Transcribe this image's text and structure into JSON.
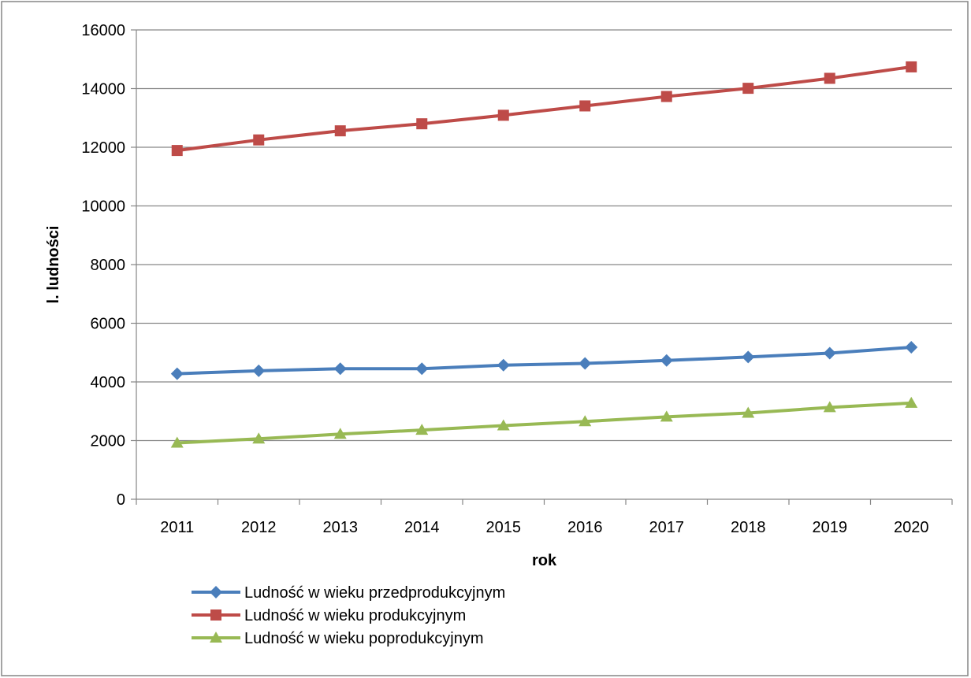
{
  "chart_data": {
    "type": "line",
    "title": "",
    "xlabel": "rok",
    "ylabel": "l. ludności",
    "categories": [
      "2011",
      "2012",
      "2013",
      "2014",
      "2015",
      "2016",
      "2017",
      "2018",
      "2019",
      "2020"
    ],
    "ylim": [
      0,
      16000
    ],
    "yticks": [
      0,
      2000,
      4000,
      6000,
      8000,
      10000,
      12000,
      14000,
      16000
    ],
    "grid": true,
    "legend": "bottom-left",
    "series": [
      {
        "name": "Ludność w wieku przedprodukcyjnym",
        "color": "#4a7ebb",
        "marker": "diamond",
        "values": [
          4280,
          4380,
          4450,
          4450,
          4570,
          4630,
          4730,
          4850,
          4980,
          5180
        ]
      },
      {
        "name": "Ludność w wieku produkcyjnym",
        "color": "#be4b48",
        "marker": "square",
        "values": [
          11890,
          12250,
          12560,
          12800,
          13090,
          13410,
          13730,
          14010,
          14350,
          14740
        ]
      },
      {
        "name": "Ludność w wieku poprodukcyjnym",
        "color": "#98b954",
        "marker": "triangle",
        "values": [
          1920,
          2060,
          2220,
          2360,
          2510,
          2650,
          2810,
          2940,
          3130,
          3280
        ]
      }
    ]
  }
}
